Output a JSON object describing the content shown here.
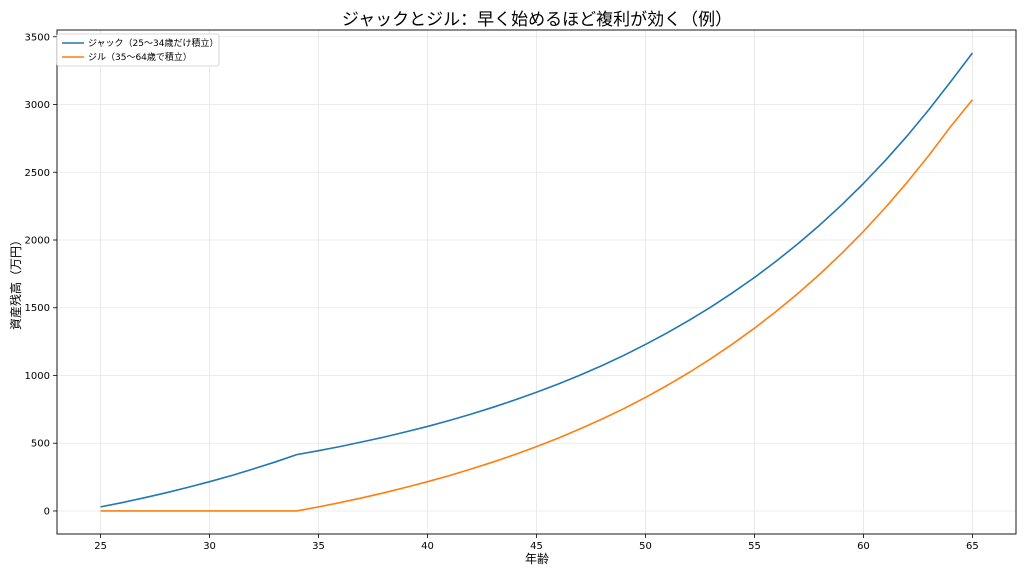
{
  "chart_data": {
    "type": "line",
    "title": "ジャックとジル：早く始めるほど複利が効く（例）",
    "xlabel": "年齢",
    "ylabel": "資産残高（万円）",
    "xlim": [
      23,
      67
    ],
    "ylim": [
      -170,
      3550
    ],
    "xticks": [
      25,
      30,
      35,
      40,
      45,
      50,
      55,
      60,
      65
    ],
    "yticks": [
      0,
      500,
      1000,
      1500,
      2000,
      2500,
      3000,
      3500
    ],
    "grid": true,
    "legend_position": "top-left",
    "series": [
      {
        "name": "ジャック（25〜34歳だけ積立）",
        "color": "#1f77b4",
        "x": [
          25,
          26,
          27,
          28,
          29,
          30,
          31,
          32,
          33,
          34,
          35,
          36,
          37,
          38,
          39,
          40,
          41,
          42,
          43,
          44,
          45,
          46,
          47,
          48,
          49,
          50,
          51,
          52,
          53,
          54,
          55,
          56,
          57,
          58,
          59,
          60,
          61,
          62,
          63,
          64,
          65
        ],
        "y": [
          30,
          62,
          97,
          134,
          174,
          216,
          261,
          310,
          361,
          416,
          445,
          476,
          510,
          545,
          584,
          624,
          668,
          715,
          765,
          819,
          876,
          937,
          1003,
          1073,
          1148,
          1229,
          1315,
          1407,
          1505,
          1611,
          1723,
          1844,
          1973,
          2111,
          2259,
          2417,
          2586,
          2767,
          2961,
          3168,
          3380
        ]
      },
      {
        "name": "ジル（35〜64歳で積立）",
        "color": "#ff7f0e",
        "x": [
          25,
          26,
          27,
          28,
          29,
          30,
          31,
          32,
          33,
          34,
          35,
          36,
          37,
          38,
          39,
          40,
          41,
          42,
          43,
          44,
          45,
          46,
          47,
          48,
          49,
          50,
          51,
          52,
          53,
          54,
          55,
          56,
          57,
          58,
          59,
          60,
          61,
          62,
          63,
          64,
          65
        ],
        "y": [
          0,
          0,
          0,
          0,
          0,
          0,
          0,
          0,
          0,
          0,
          30,
          62,
          97,
          134,
          174,
          216,
          261,
          310,
          361,
          416,
          475,
          538,
          606,
          678,
          755,
          838,
          927,
          1022,
          1124,
          1233,
          1349,
          1473,
          1606,
          1748,
          1901,
          2063,
          2238,
          2424,
          2624,
          2837,
          3035
        ]
      }
    ]
  }
}
